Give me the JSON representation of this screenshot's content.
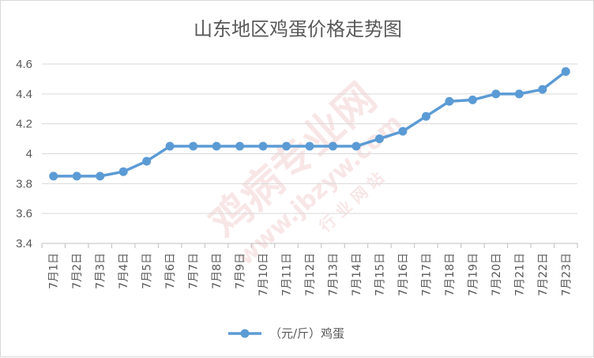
{
  "chart_data": {
    "type": "line",
    "title": "山东地区鸡蛋价格走势图",
    "xlabel": "",
    "ylabel": "",
    "categories": [
      "7月1日",
      "7月2日",
      "7月3日",
      "7月4日",
      "7月5日",
      "7月6日",
      "7月7日",
      "7月8日",
      "7月9日",
      "7月10日",
      "7月11日",
      "7月12日",
      "7月13日",
      "7月14日",
      "7月15日",
      "7月16日",
      "7月17日",
      "7月18日",
      "7月19日",
      "7月20日",
      "7月21日",
      "7月22日",
      "7月23日"
    ],
    "series": [
      {
        "name": "（元/斤）鸡蛋",
        "color": "#5b9bd5",
        "values": [
          3.85,
          3.85,
          3.85,
          3.88,
          3.95,
          4.05,
          4.05,
          4.05,
          4.05,
          4.05,
          4.05,
          4.05,
          4.05,
          4.05,
          4.1,
          4.15,
          4.25,
          4.35,
          4.36,
          4.4,
          4.4,
          4.43,
          4.55
        ]
      }
    ],
    "ylim": [
      3.4,
      4.6
    ],
    "yticks": [
      "3.4",
      "3.6",
      "3.8",
      "4",
      "4.2",
      "4.4",
      "4.6"
    ],
    "grid": true,
    "legend_position": "bottom"
  },
  "watermark": {
    "text": "鸡病专业网",
    "url": "www.jbzyw.com",
    "sub": "行 业 网 站",
    "color": "#d9534f"
  }
}
